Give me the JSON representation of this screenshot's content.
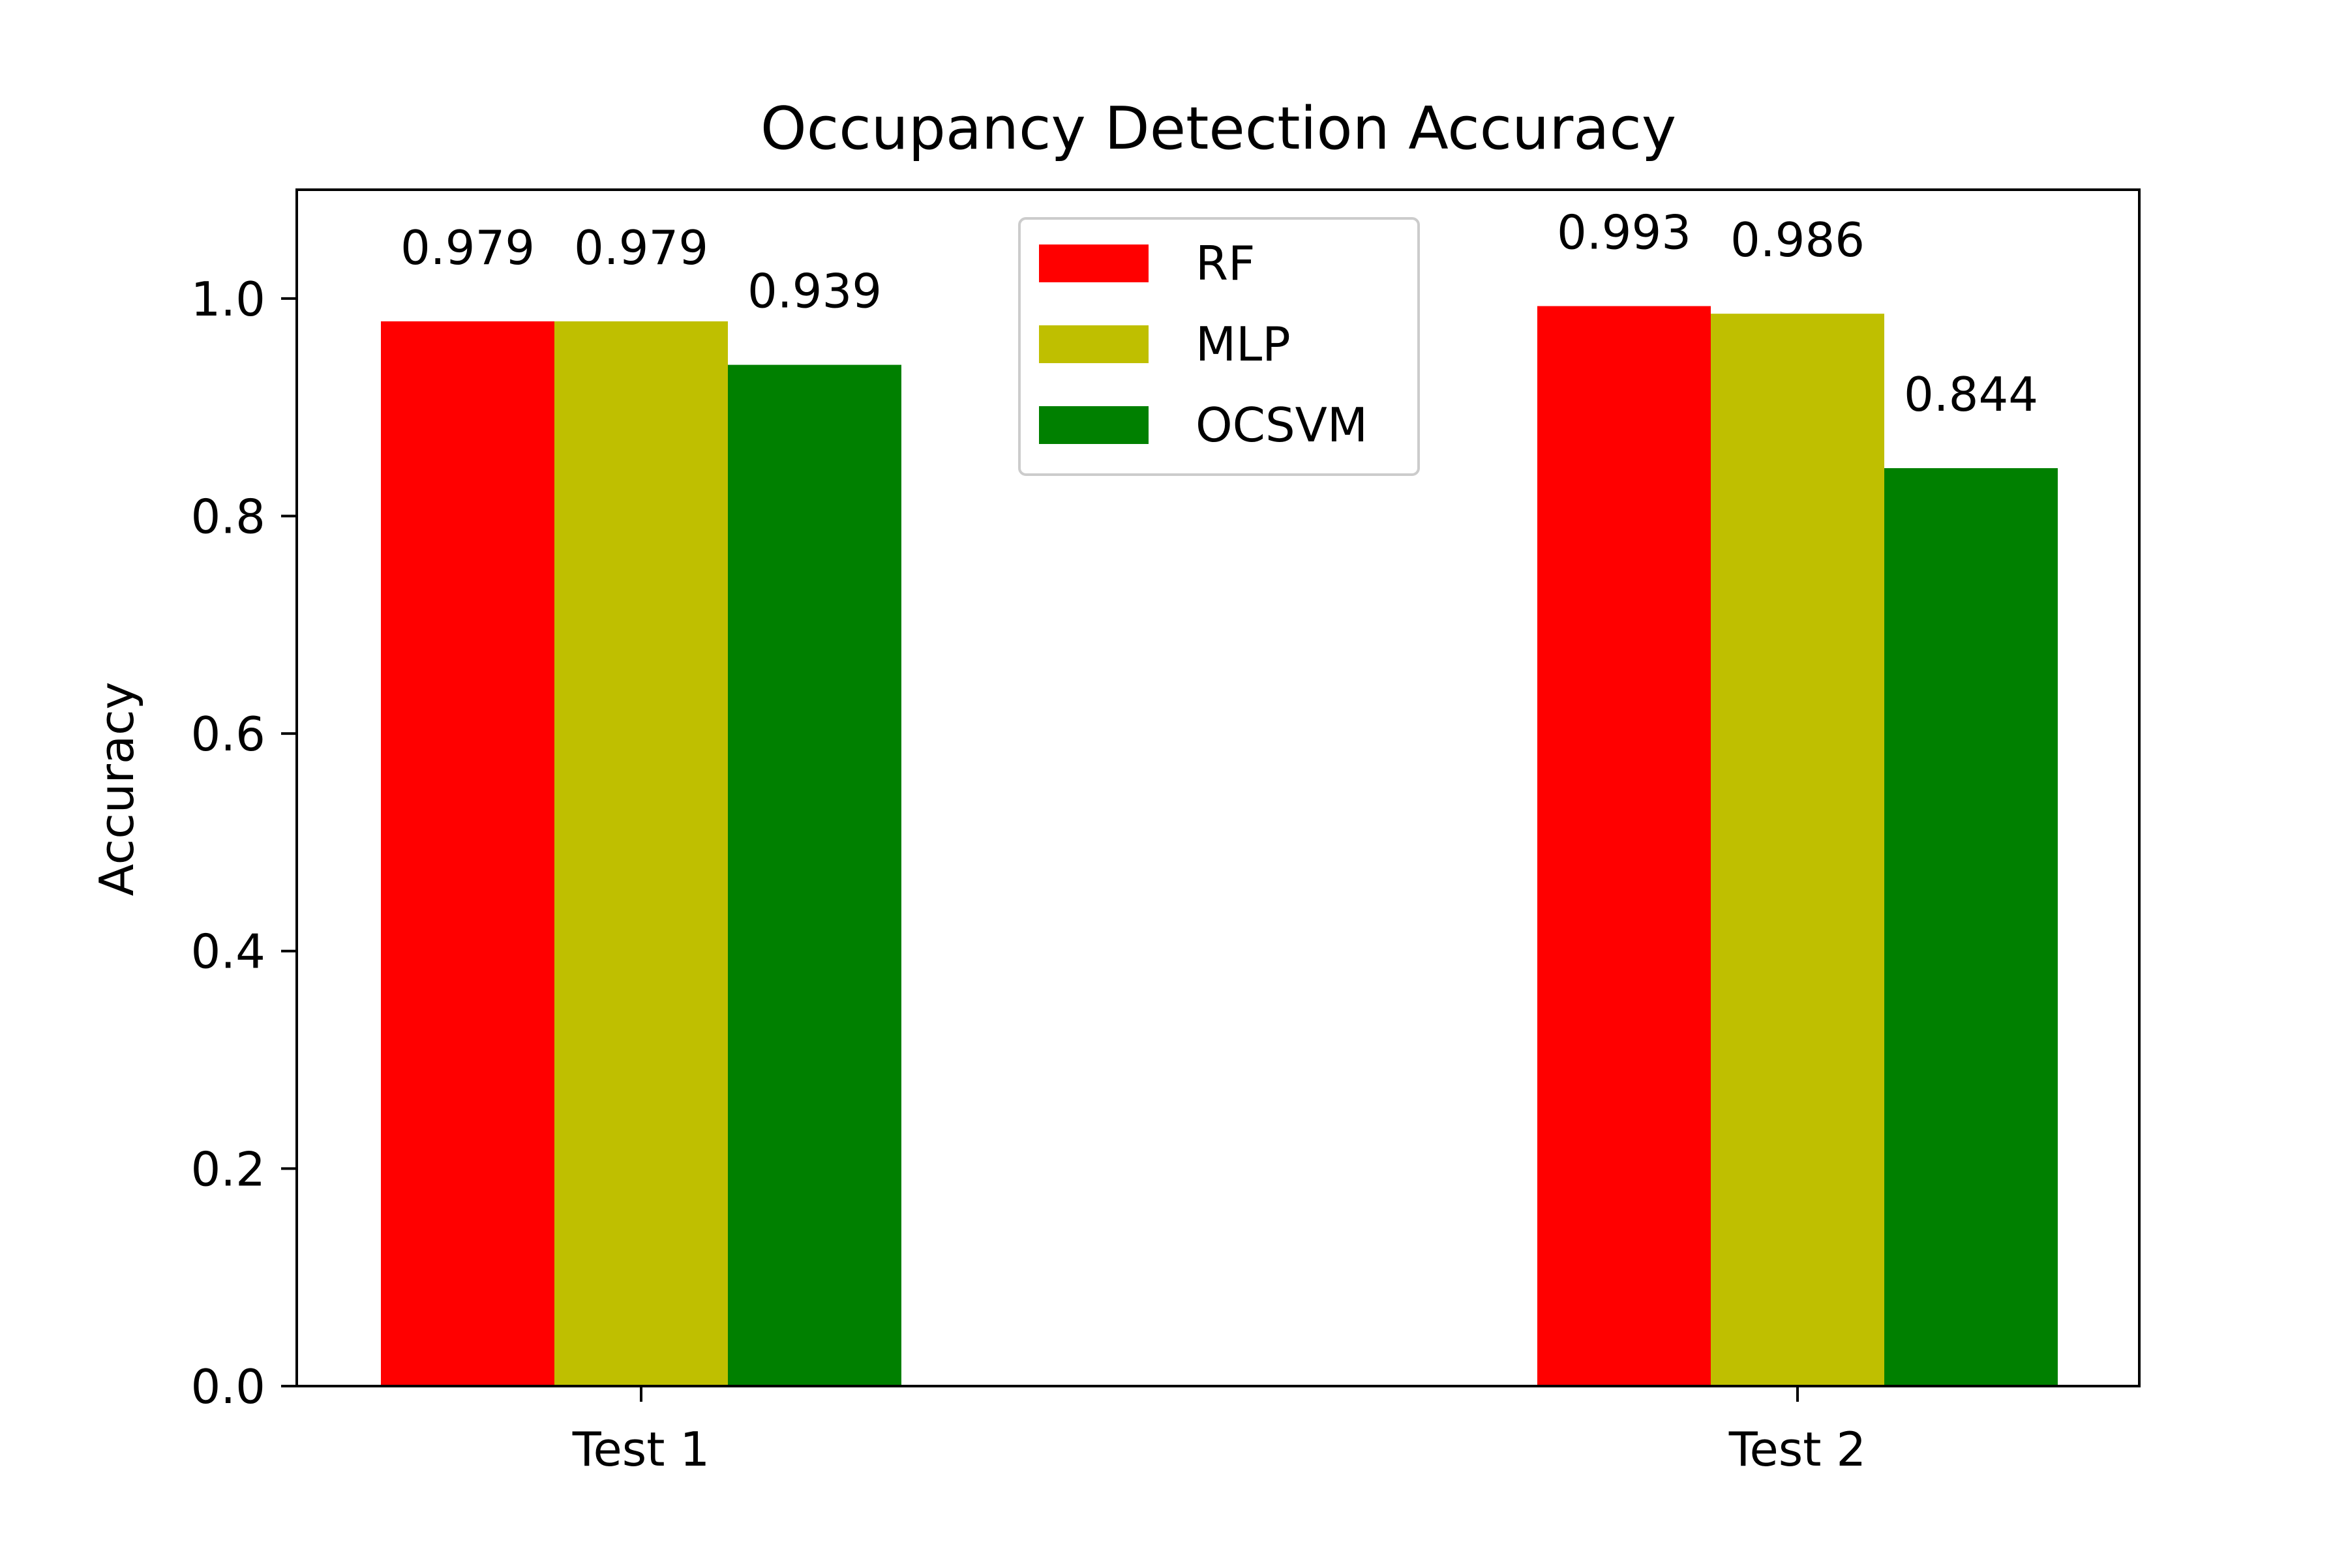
{
  "chart_data": {
    "type": "bar",
    "title": "Occupancy Detection Accuracy",
    "xlabel": "",
    "ylabel": "Accuracy",
    "ylim": [
      0,
      1.1
    ],
    "yticks": [
      "0.0",
      "0.2",
      "0.4",
      "0.6",
      "0.8",
      "1.0"
    ],
    "categories": [
      "Test 1",
      "Test 2"
    ],
    "series": [
      {
        "name": "RF",
        "color": "#ff0000",
        "values": [
          0.979,
          0.993
        ],
        "labels": [
          "0.979",
          "0.993"
        ]
      },
      {
        "name": "MLP",
        "color": "#bfbf00",
        "values": [
          0.979,
          0.986
        ],
        "labels": [
          "0.979",
          "0.986"
        ]
      },
      {
        "name": "OCSVM",
        "color": "#008000",
        "values": [
          0.939,
          0.844
        ],
        "labels": [
          "0.939",
          "0.844"
        ]
      }
    ],
    "legend_position": "top-center",
    "grid": false
  }
}
